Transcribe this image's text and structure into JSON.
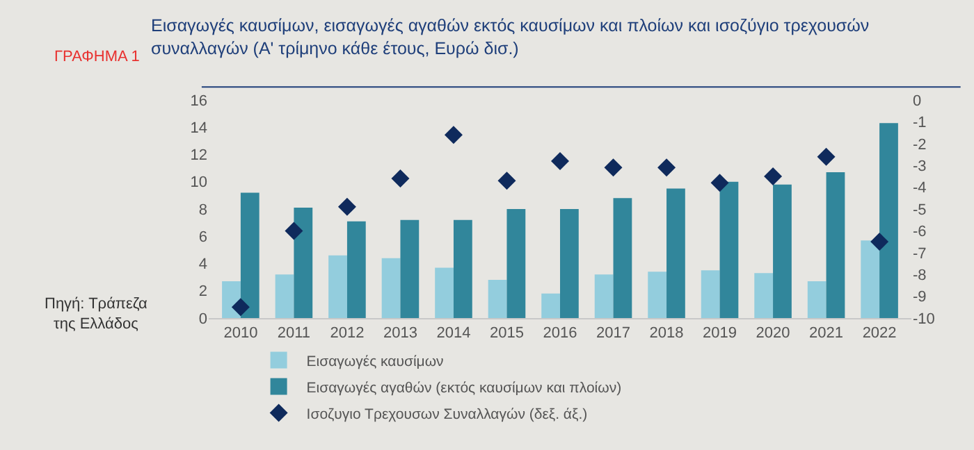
{
  "chart_data": {
    "type": "bar",
    "title": "Εισαγωγές καυσίμων, εισαγωγές αγαθών εκτός καυσίμων και πλοίων και ισοζύγιο τρεχουσών συναλλαγών (Α' τρίμηνο κάθε έτους, Ευρώ δισ.)",
    "annotations": [
      "ΓΡΑΦΗΜΑ 1",
      "Πηγή: Τράπεζα της Ελλάδος"
    ],
    "categories": [
      "2010",
      "2011",
      "2012",
      "2013",
      "2014",
      "2015",
      "2016",
      "2017",
      "2018",
      "2019",
      "2020",
      "2021",
      "2022"
    ],
    "series": [
      {
        "name": "Εισαγωγές καυσίμων",
        "color": "#93cddd",
        "values": [
          2.7,
          3.2,
          4.6,
          4.4,
          3.7,
          2.8,
          1.8,
          3.2,
          3.4,
          3.5,
          3.3,
          2.7,
          5.7
        ]
      },
      {
        "name": "Εισαγωγές αγαθών (εκτός καυσίμων και πλοίων)",
        "color": "#31869b",
        "values": [
          9.2,
          8.1,
          7.1,
          7.2,
          7.2,
          8.0,
          8.0,
          8.8,
          9.5,
          10.0,
          9.8,
          10.7,
          14.3
        ]
      },
      {
        "name": "Ισοζυγιο Τρεχουσων Συναλλαγών (δεξ. άξ.)",
        "type": "scatter",
        "axis": "y2",
        "color": "#0f2a5c",
        "values": [
          -9.5,
          -6.0,
          -4.9,
          -3.6,
          -1.6,
          -3.7,
          -2.8,
          -3.1,
          -3.1,
          -3.8,
          -3.5,
          -2.6,
          -6.5
        ]
      }
    ],
    "marker": "diamond",
    "ylim": [
      0,
      16
    ],
    "yticks": [
      0,
      2,
      4,
      6,
      8,
      10,
      12,
      14,
      16
    ],
    "y2lim": [
      -10,
      0
    ],
    "y2ticks": [
      -10,
      -9,
      -8,
      -7,
      -6,
      -5,
      -4,
      -3,
      -2,
      -1,
      0
    ],
    "grid": false,
    "legend": "bottom"
  }
}
